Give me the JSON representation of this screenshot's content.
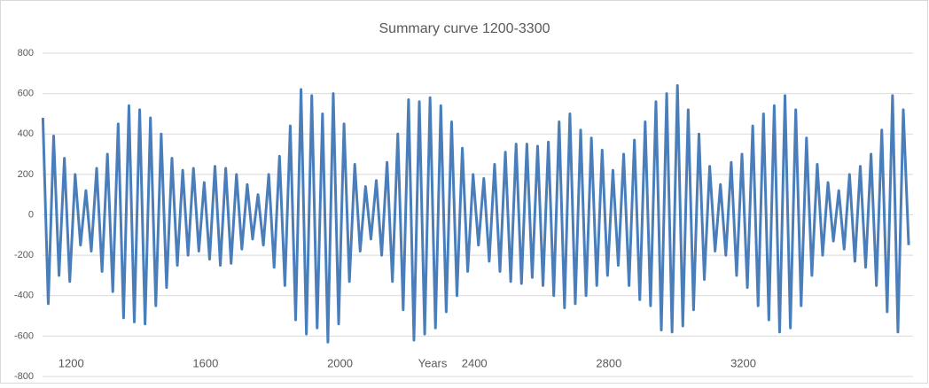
{
  "chart_data": {
    "type": "line",
    "title": "Summary curve 1200-3300",
    "x_label": "Years",
    "color": "#4a7ebb",
    "grid": true,
    "xlim": [
      1115,
      3705
    ],
    "xticks": [
      1200,
      1600,
      2000,
      2400,
      2800,
      3200
    ],
    "ylim": [
      -800,
      800
    ],
    "yticks": [
      -800,
      -600,
      -400,
      -200,
      0,
      200,
      400,
      600,
      800
    ],
    "x": [
      1116,
      1132,
      1148,
      1164,
      1180,
      1196,
      1212,
      1228,
      1244,
      1260,
      1276,
      1292,
      1308,
      1324,
      1340,
      1356,
      1372,
      1388,
      1404,
      1420,
      1436,
      1452,
      1468,
      1484,
      1500,
      1516,
      1532,
      1548,
      1564,
      1580,
      1596,
      1612,
      1628,
      1644,
      1660,
      1676,
      1692,
      1708,
      1724,
      1740,
      1756,
      1772,
      1788,
      1804,
      1820,
      1836,
      1852,
      1868,
      1884,
      1900,
      1916,
      1932,
      1948,
      1964,
      1980,
      1996,
      2012,
      2028,
      2044,
      2060,
      2076,
      2092,
      2108,
      2124,
      2140,
      2156,
      2172,
      2188,
      2204,
      2220,
      2236,
      2252,
      2268,
      2284,
      2300,
      2316,
      2332,
      2348,
      2364,
      2380,
      2396,
      2412,
      2428,
      2444,
      2460,
      2476,
      2492,
      2508,
      2524,
      2540,
      2556,
      2572,
      2588,
      2604,
      2620,
      2636,
      2652,
      2668,
      2684,
      2700,
      2716,
      2732,
      2748,
      2764,
      2780,
      2796,
      2812,
      2828,
      2844,
      2860,
      2876,
      2892,
      2908,
      2924,
      2940,
      2956,
      2972,
      2988,
      3004,
      3020,
      3036,
      3052,
      3068,
      3084,
      3100,
      3116,
      3132,
      3148,
      3164,
      3180,
      3196,
      3212,
      3228,
      3244,
      3260,
      3276,
      3292,
      3308,
      3324,
      3340,
      3356,
      3372,
      3388,
      3404,
      3420,
      3436,
      3452,
      3468,
      3484,
      3500,
      3516,
      3532,
      3548,
      3564,
      3580,
      3596,
      3612,
      3628,
      3644,
      3660,
      3676,
      3692
    ],
    "values": [
      480,
      -440,
      390,
      -300,
      280,
      -330,
      200,
      -150,
      120,
      -180,
      230,
      -280,
      300,
      -380,
      450,
      -510,
      540,
      -530,
      520,
      -540,
      480,
      -450,
      400,
      -360,
      280,
      -250,
      220,
      -200,
      230,
      -180,
      160,
      -220,
      240,
      -250,
      230,
      -240,
      200,
      -170,
      150,
      -120,
      100,
      -150,
      200,
      -260,
      290,
      -350,
      440,
      -520,
      620,
      -590,
      590,
      -560,
      500,
      -630,
      600,
      -540,
      450,
      -330,
      250,
      -180,
      140,
      -120,
      170,
      -200,
      260,
      -330,
      400,
      -470,
      570,
      -620,
      560,
      -590,
      580,
      -560,
      540,
      -480,
      460,
      -400,
      330,
      -280,
      200,
      -150,
      180,
      -230,
      250,
      -280,
      310,
      -330,
      350,
      -340,
      350,
      -310,
      340,
      -350,
      360,
      -400,
      460,
      -460,
      500,
      -440,
      420,
      -400,
      380,
      -350,
      320,
      -300,
      220,
      -250,
      300,
      -350,
      370,
      -420,
      460,
      -450,
      560,
      -570,
      600,
      -580,
      640,
      -550,
      520,
      -470,
      400,
      -320,
      240,
      -180,
      150,
      -200,
      260,
      -300,
      300,
      -360,
      440,
      -450,
      500,
      -520,
      540,
      -580,
      590,
      -560,
      520,
      -450,
      380,
      -300,
      250,
      -200,
      160,
      -130,
      120,
      -170,
      200,
      -230,
      240,
      -260,
      300,
      -350,
      420,
      -480,
      590,
      -580,
      520,
      -150
    ]
  }
}
